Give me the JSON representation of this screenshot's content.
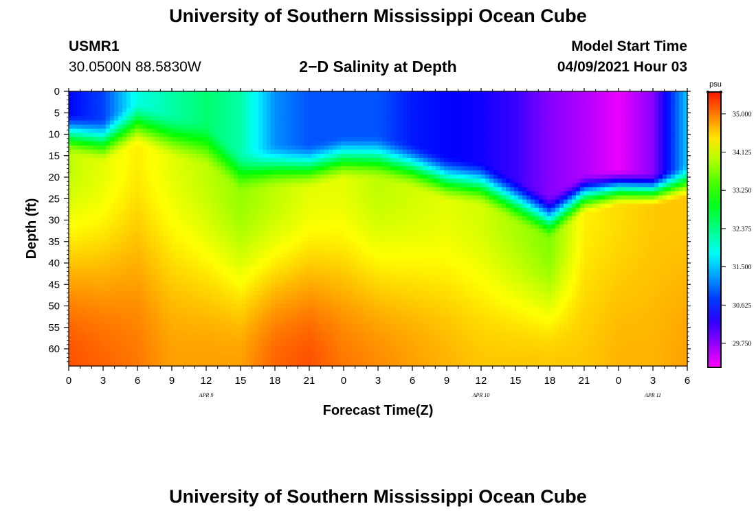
{
  "header": {
    "title": "University of Southern Mississippi Ocean Cube",
    "station": "USMR1",
    "coordinates": "30.0500N  88.5830W",
    "subtitle": "2−D Salinity at Depth",
    "start_label": "Model Start Time",
    "start_value": "04/09/2021 Hour 03",
    "footer_title": "University of Southern Mississippi Ocean Cube"
  },
  "chart_data": {
    "type": "heatmap",
    "title": "2−D Salinity at Depth",
    "xlabel": "Forecast Time(Z)",
    "ylabel": "Depth (ft)",
    "x_tick_labels": [
      "0",
      "3",
      "6",
      "9",
      "12",
      "15",
      "18",
      "21",
      "0",
      "3",
      "6",
      "9",
      "12",
      "15",
      "18",
      "21",
      "0",
      "3",
      "6"
    ],
    "date_labels": [
      {
        "label": "APR  9",
        "tick_index": 4
      },
      {
        "label": "APR  10",
        "tick_index": 12
      },
      {
        "label": "APR  11",
        "tick_index": 17
      }
    ],
    "ylim": [
      0,
      64
    ],
    "y_ticks": [
      0,
      5,
      10,
      15,
      20,
      25,
      30,
      35,
      40,
      45,
      50,
      55,
      60
    ],
    "colorbar": {
      "unit": "psu",
      "min": 29.2,
      "max": 35.5,
      "tick_values": [
        35.0,
        34.125,
        33.25,
        32.375,
        31.5,
        30.625,
        29.75
      ],
      "tick_labels": [
        "35.000",
        "34.125",
        "33.250",
        "32.375",
        "31.500",
        "30.625",
        "29.750"
      ]
    },
    "surface_salinity_psu": [
      30.5,
      30.8,
      31.9,
      32.2,
      32.5,
      32.2,
      31.2,
      30.9,
      30.9,
      30.9,
      30.6,
      30.5,
      30.4,
      30.2,
      29.8,
      29.6,
      29.3,
      29.8,
      31.5
    ],
    "halocline_depth_ft": [
      10,
      12,
      8,
      11,
      13,
      19,
      18,
      18,
      16,
      16,
      18,
      21,
      22,
      26,
      30,
      24,
      22,
      22,
      20
    ],
    "halocline_thickness_ft": [
      5,
      6,
      6,
      6,
      6,
      5,
      6,
      6,
      6,
      6,
      6,
      6,
      6,
      6,
      6,
      5,
      4,
      3,
      3
    ],
    "mid_water_salinity_psu": [
      34.0,
      34.2,
      34.4,
      34.2,
      34.0,
      33.8,
      34.0,
      34.2,
      34.2,
      34.0,
      34.1,
      34.2,
      34.1,
      33.9,
      33.7,
      34.4,
      34.5,
      34.6,
      34.6
    ],
    "bottom_salinity_psu": [
      35.2,
      35.1,
      35.0,
      34.8,
      34.8,
      34.8,
      35.1,
      35.2,
      35.0,
      34.9,
      34.8,
      34.7,
      34.6,
      34.6,
      34.6,
      34.6,
      34.7,
      34.7,
      34.8
    ]
  }
}
